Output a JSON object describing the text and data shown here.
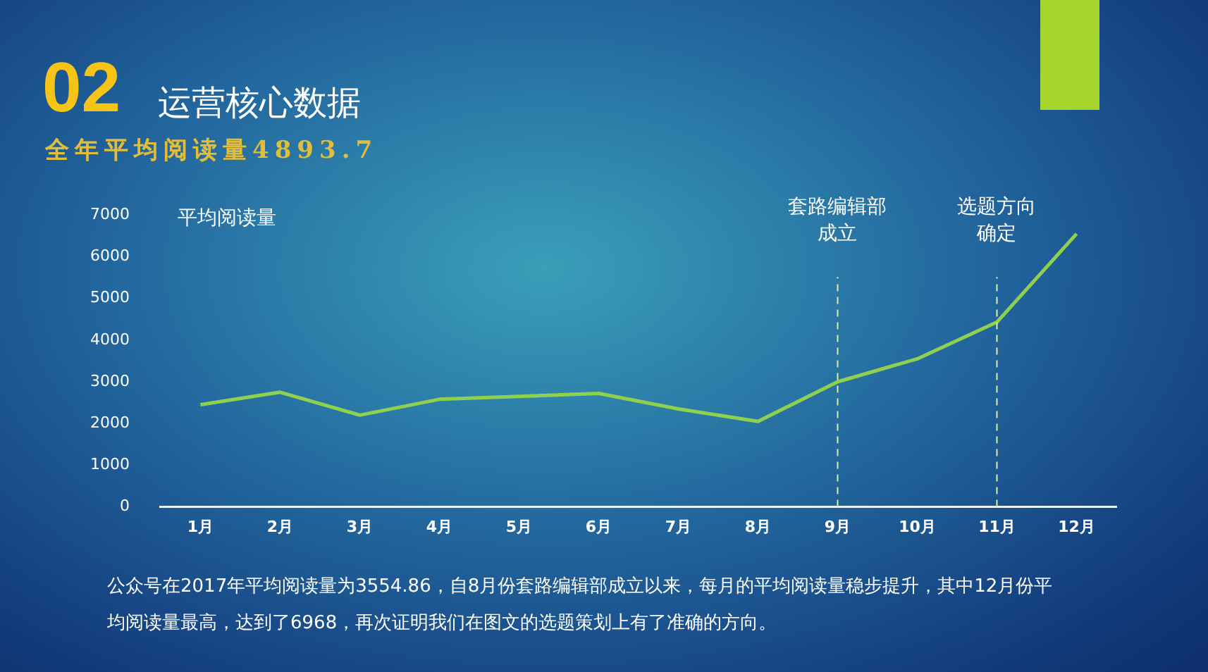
{
  "chart_data": {
    "type": "line",
    "title": "运营核心数据",
    "subtitle": "全年平均阅读量4893.7",
    "ylabel": "平均阅读量",
    "annotations": [
      "02",
      "公众号在2017年平均阅读量为3554.86，自8月份套路编辑部成立以来，每月的平均阅读量稳步提升，其中12月份平均阅读量最高，达到了6968，再次证明我们在图文的选题策划上有了准确的方向。"
    ],
    "categories": [
      "1月",
      "2月",
      "3月",
      "4月",
      "5月",
      "6月",
      "7月",
      "8月",
      "9月",
      "10月",
      "11月",
      "12月"
    ],
    "series": [
      {
        "color": "#8fd14f",
        "values": [
          2450,
          2750,
          2200,
          2580,
          2650,
          2720,
          2350,
          2050,
          3000,
          3550,
          4430,
          6550
        ]
      }
    ],
    "ylim": [
      0,
      7000
    ],
    "yticks": [
      0,
      1000,
      2000,
      3000,
      4000,
      5000,
      6000,
      7000
    ],
    "ref_lines": [
      {
        "axis": "x",
        "value": "9月",
        "label": "套路编辑部成立",
        "color": "#d8f0a8",
        "line_style": "dashed"
      },
      {
        "axis": "x",
        "value": "11月",
        "label": "选题方向确定",
        "color": "#d8f0a8",
        "line_style": "dashed"
      }
    ],
    "grid": false,
    "legend": false,
    "marker": "none",
    "line_style": "solid"
  }
}
